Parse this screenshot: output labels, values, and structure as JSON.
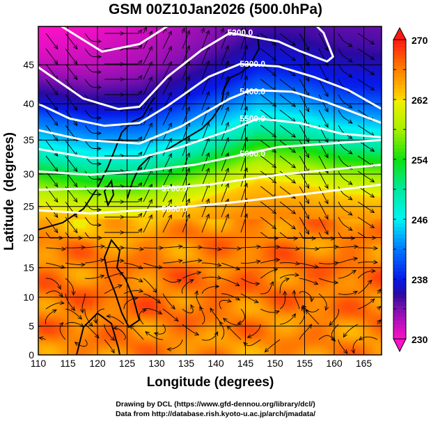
{
  "chart_data": {
    "type": "heatmap",
    "title": "GSM 00Z10Jan2026 (500.0hPa)",
    "xlabel": "Longitude (degrees)",
    "ylabel": "Latitude  (degrees)",
    "xlim": [
      110,
      168
    ],
    "ylim": [
      0,
      50
    ],
    "projection": "mercator",
    "x_ticks": [
      110,
      115,
      120,
      125,
      130,
      135,
      140,
      145,
      150,
      155,
      160,
      165
    ],
    "y_ticks": [
      0,
      5,
      10,
      15,
      20,
      25,
      30,
      35,
      40,
      45
    ],
    "grid": true,
    "colorbar": {
      "range": [
        230,
        270
      ],
      "tick_labels": [
        "230",
        "238",
        "246",
        "254",
        "262",
        "270"
      ],
      "minor_step": 4,
      "extend": "both",
      "stops": [
        [
          230,
          "#ff10c8"
        ],
        [
          234,
          "#8010b0"
        ],
        [
          236,
          "#2a0aa0"
        ],
        [
          238,
          "#0818e8"
        ],
        [
          242,
          "#0078ff"
        ],
        [
          246,
          "#00f4f4"
        ],
        [
          250,
          "#00e8a0"
        ],
        [
          254,
          "#10e010"
        ],
        [
          258,
          "#a8f000"
        ],
        [
          261.9,
          "#f0f000"
        ],
        [
          262,
          "#ffd800"
        ],
        [
          266,
          "#ff8000"
        ],
        [
          270,
          "#ff1a10"
        ]
      ]
    },
    "contours": [
      {
        "level": 5100,
        "label": "",
        "points": [
          [
            110,
            49.8
          ],
          [
            113.3,
            49.8
          ],
          [
            120.8,
            46.6
          ],
          [
            127.1,
            47.5
          ],
          [
            132.4,
            49.8
          ]
        ]
      },
      {
        "level": 5200,
        "label": "5200.0",
        "label_at": [
          144.1,
          48.8
        ],
        "points": [
          [
            110,
            44.7
          ],
          [
            117.6,
            40.7
          ],
          [
            123.5,
            39.3
          ],
          [
            127.1,
            39.6
          ],
          [
            131.8,
            43.5
          ],
          [
            137.6,
            46.8
          ],
          [
            142.4,
            48.8
          ],
          [
            150.6,
            47.8
          ],
          [
            154.1,
            46.7
          ],
          [
            158.8,
            45.4
          ],
          [
            159.8,
            46
          ],
          [
            158.2,
            48.8
          ],
          [
            156.5,
            49.9
          ]
        ]
      },
      {
        "level": 5300,
        "label": "5300.0",
        "label_at": [
          146.2,
          45.1
        ],
        "points": [
          [
            110,
            40
          ],
          [
            115.3,
            38
          ],
          [
            121.2,
            37
          ],
          [
            127.1,
            37.4
          ],
          [
            131.8,
            39.7
          ],
          [
            138.8,
            43.5
          ],
          [
            144.1,
            45.1
          ],
          [
            150.6,
            44.8
          ],
          [
            156.5,
            43.5
          ],
          [
            162.4,
            41.8
          ],
          [
            168,
            39.3
          ]
        ]
      },
      {
        "level": 5400,
        "label": "5400.0",
        "label_at": [
          146.2,
          41.6
        ],
        "points": [
          [
            110,
            36.4
          ],
          [
            117.6,
            35
          ],
          [
            127.1,
            34.5
          ],
          [
            134.1,
            36.9
          ],
          [
            142.4,
            40.7
          ],
          [
            145.9,
            41.8
          ],
          [
            152.9,
            41.6
          ],
          [
            158.8,
            40.2
          ],
          [
            168,
            37.4
          ]
        ]
      },
      {
        "level": 5500,
        "label": "5500.0",
        "label_at": [
          146.2,
          38
        ],
        "points": [
          [
            110,
            33.7
          ],
          [
            118.8,
            32.4
          ],
          [
            127.1,
            32.4
          ],
          [
            134.1,
            34
          ],
          [
            142.4,
            36.4
          ],
          [
            147.1,
            38
          ],
          [
            154.1,
            37.4
          ],
          [
            161.2,
            35.9
          ],
          [
            168,
            35.4
          ]
        ]
      },
      {
        "level": 5600,
        "label": "5600.0",
        "label_at": [
          146.2,
          33
        ],
        "points": [
          [
            110,
            30.4
          ],
          [
            118.8,
            29.9
          ],
          [
            127.1,
            30.4
          ],
          [
            136.5,
            31.4
          ],
          [
            143.5,
            32.7
          ],
          [
            150.6,
            34
          ],
          [
            168,
            35
          ]
        ]
      },
      {
        "level": 5700,
        "label": "5700.0",
        "label_at": [
          133,
          27.8
        ],
        "points": [
          [
            110,
            27.6
          ],
          [
            118.8,
            27.8
          ],
          [
            130.6,
            27.8
          ],
          [
            138.8,
            28.4
          ],
          [
            150.6,
            29.9
          ],
          [
            168,
            31.4
          ]
        ]
      },
      {
        "level": 5800,
        "label": "5800.0",
        "label_at": [
          133,
          24.6
        ],
        "points": [
          [
            110,
            24.4
          ],
          [
            118.8,
            23.9
          ],
          [
            130.6,
            24.6
          ],
          [
            142.4,
            25.6
          ],
          [
            156.5,
            27.1
          ],
          [
            168,
            28.4
          ]
        ]
      }
    ]
  },
  "footer": {
    "line1": "Drawing by DCL (https://www.gfd-dennou.org/library/dcl/)",
    "line2": "Data from http://database.rish.kyoto-u.ac.jp/arch/jmadata/"
  }
}
